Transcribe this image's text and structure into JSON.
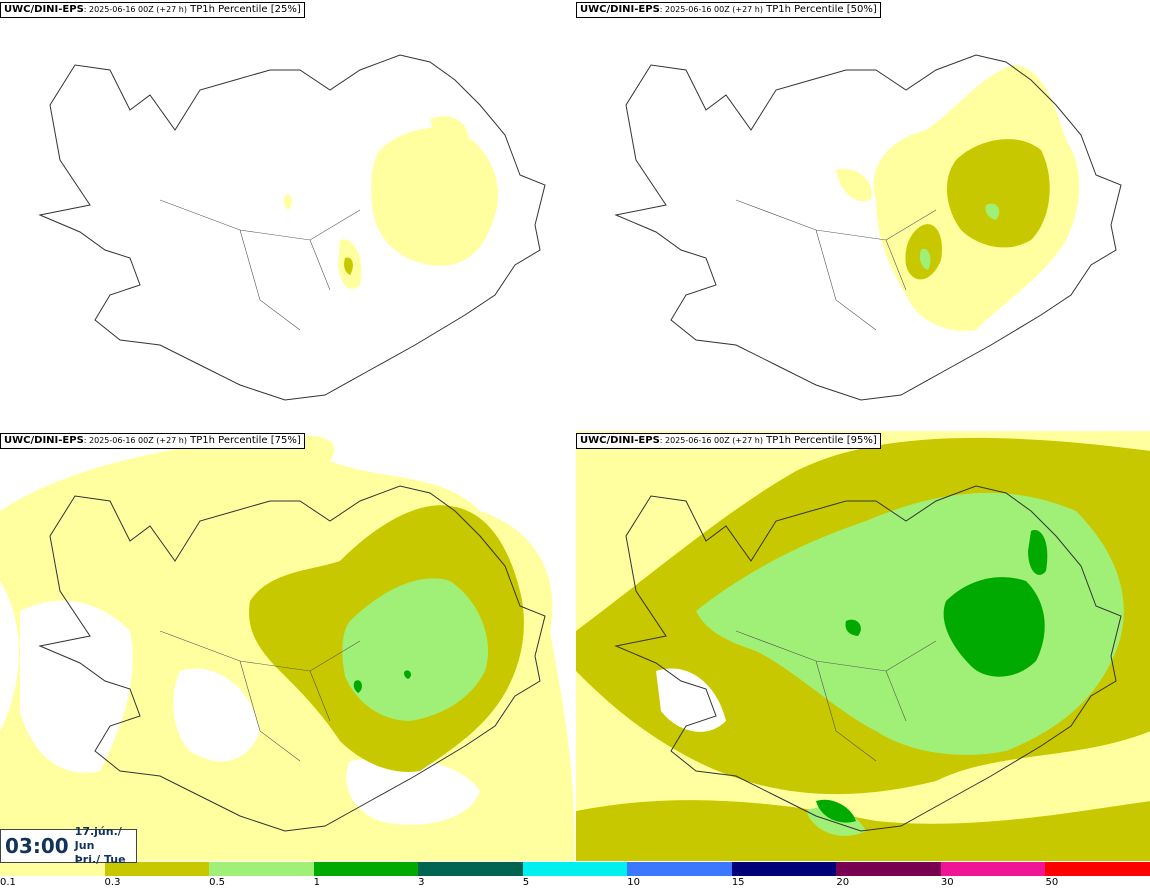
{
  "panels": [
    {
      "model": "UWC/DINI-EPS",
      "run": ": 2025-06-16 00Z (+27 h)",
      "param": " TP1h Percentile [25%]"
    },
    {
      "model": "UWC/DINI-EPS",
      "run": ": 2025-06-16 00Z (+27 h)",
      "param": " TP1h Percentile [50%]"
    },
    {
      "model": "UWC/DINI-EPS",
      "run": ": 2025-06-16 00Z (+27 h)",
      "param": " TP1h Percentile [75%]"
    },
    {
      "model": "UWC/DINI-EPS",
      "run": ": 2025-06-16 00Z (+27 h)",
      "param": " TP1h Percentile [95%]"
    }
  ],
  "valid_time": {
    "clock": "03:00",
    "date": "17.jún./ Jun",
    "weekday": "Þri./ Tue"
  },
  "legend": {
    "labels": [
      "0.1",
      "0.3",
      "0.5",
      "1",
      "3",
      "5",
      "10",
      "15",
      "20",
      "30",
      "50"
    ],
    "colors": [
      "#ffffa0",
      "#c8c800",
      "#a0f078",
      "#00aa00",
      "#006450",
      "#00f0f0",
      "#3c78ff",
      "#000078",
      "#780050",
      "#f01496",
      "#ff0000"
    ]
  }
}
